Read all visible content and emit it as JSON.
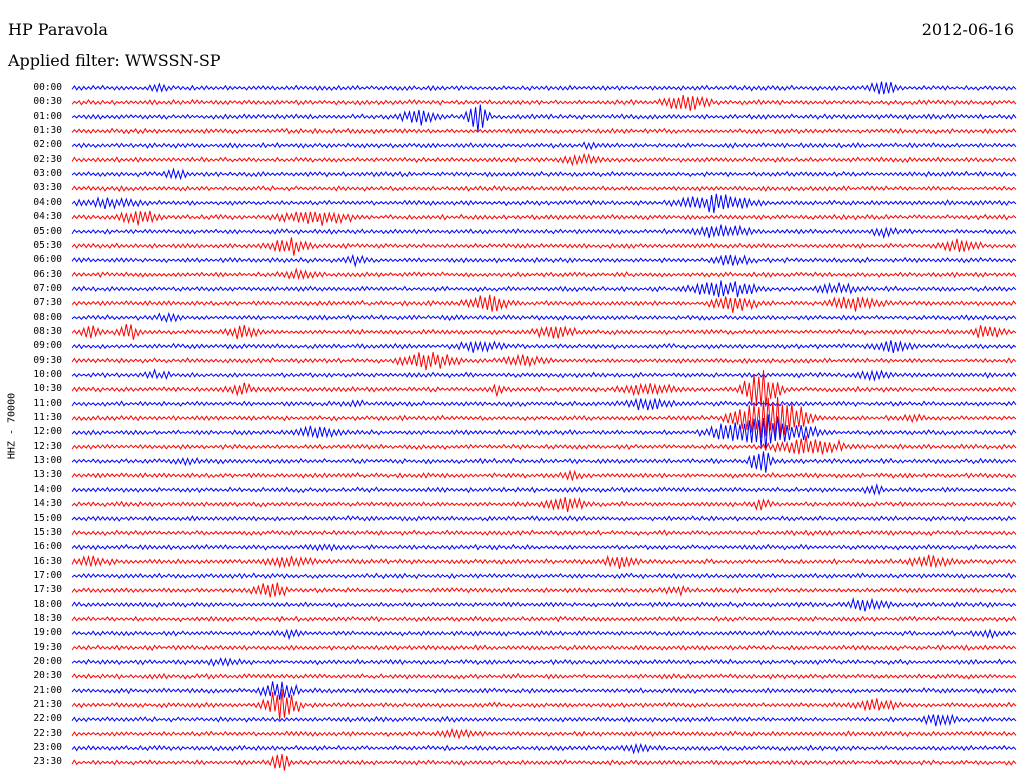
{
  "header": {
    "station": "HP Paravola",
    "date": "2012-06-16",
    "filter_label": "Applied filter: WWSSN-SP"
  },
  "channel_label": "HHZ - 70000",
  "colors": {
    "even_trace": "#0000ff",
    "odd_trace": "#ff0000",
    "background": "#ffffff"
  },
  "chart_data": {
    "type": "line",
    "title": "HP Paravola",
    "subtitle": "Applied filter: WWSSN-SP",
    "ylabel": "HHZ - 70000",
    "rows": [
      "00:00",
      "00:30",
      "01:00",
      "01:30",
      "02:00",
      "02:30",
      "03:00",
      "03:30",
      "04:00",
      "04:30",
      "05:00",
      "05:30",
      "06:00",
      "06:30",
      "07:00",
      "07:30",
      "08:00",
      "08:30",
      "09:00",
      "09:30",
      "10:00",
      "10:30",
      "11:00",
      "11:30",
      "12:00",
      "12:30",
      "13:00",
      "13:30",
      "14:00",
      "14:30",
      "15:00",
      "15:30",
      "16:00",
      "16:30",
      "17:00",
      "17:30",
      "18:00",
      "18:30",
      "19:00",
      "19:30",
      "20:00",
      "20:30",
      "21:00",
      "21:30",
      "22:00",
      "22:30",
      "23:00",
      "23:30"
    ],
    "row_colors": [
      "blue",
      "red"
    ],
    "events": [
      {
        "row": 0,
        "pos": 0.09,
        "amp": 6,
        "len": 0.02
      },
      {
        "row": 0,
        "pos": 0.86,
        "amp": 14,
        "len": 0.02
      },
      {
        "row": 1,
        "pos": 0.65,
        "amp": 12,
        "len": 0.04
      },
      {
        "row": 2,
        "pos": 0.37,
        "amp": 10,
        "len": 0.04
      },
      {
        "row": 2,
        "pos": 0.43,
        "amp": 18,
        "len": 0.02
      },
      {
        "row": 4,
        "pos": 0.55,
        "amp": 6,
        "len": 0.02
      },
      {
        "row": 5,
        "pos": 0.54,
        "amp": 8,
        "len": 0.04
      },
      {
        "row": 6,
        "pos": 0.11,
        "amp": 7,
        "len": 0.03
      },
      {
        "row": 8,
        "pos": 0.04,
        "amp": 8,
        "len": 0.06
      },
      {
        "row": 8,
        "pos": 0.68,
        "amp": 12,
        "len": 0.07
      },
      {
        "row": 9,
        "pos": 0.07,
        "amp": 10,
        "len": 0.04
      },
      {
        "row": 9,
        "pos": 0.26,
        "amp": 10,
        "len": 0.07
      },
      {
        "row": 10,
        "pos": 0.69,
        "amp": 10,
        "len": 0.05
      },
      {
        "row": 10,
        "pos": 0.86,
        "amp": 7,
        "len": 0.03
      },
      {
        "row": 11,
        "pos": 0.23,
        "amp": 12,
        "len": 0.04
      },
      {
        "row": 11,
        "pos": 0.94,
        "amp": 10,
        "len": 0.04
      },
      {
        "row": 12,
        "pos": 0.3,
        "amp": 6,
        "len": 0.03
      },
      {
        "row": 12,
        "pos": 0.7,
        "amp": 8,
        "len": 0.04
      },
      {
        "row": 13,
        "pos": 0.24,
        "amp": 8,
        "len": 0.04
      },
      {
        "row": 14,
        "pos": 0.69,
        "amp": 12,
        "len": 0.06
      },
      {
        "row": 14,
        "pos": 0.81,
        "amp": 8,
        "len": 0.04
      },
      {
        "row": 15,
        "pos": 0.44,
        "amp": 12,
        "len": 0.04
      },
      {
        "row": 15,
        "pos": 0.7,
        "amp": 12,
        "len": 0.04
      },
      {
        "row": 15,
        "pos": 0.83,
        "amp": 10,
        "len": 0.05
      },
      {
        "row": 16,
        "pos": 0.1,
        "amp": 6,
        "len": 0.03
      },
      {
        "row": 17,
        "pos": 0.02,
        "amp": 10,
        "len": 0.02
      },
      {
        "row": 17,
        "pos": 0.06,
        "amp": 12,
        "len": 0.02
      },
      {
        "row": 17,
        "pos": 0.18,
        "amp": 10,
        "len": 0.03
      },
      {
        "row": 17,
        "pos": 0.51,
        "amp": 10,
        "len": 0.04
      },
      {
        "row": 17,
        "pos": 0.97,
        "amp": 10,
        "len": 0.03
      },
      {
        "row": 18,
        "pos": 0.43,
        "amp": 8,
        "len": 0.05
      },
      {
        "row": 18,
        "pos": 0.87,
        "amp": 10,
        "len": 0.04
      },
      {
        "row": 19,
        "pos": 0.38,
        "amp": 14,
        "len": 0.05
      },
      {
        "row": 19,
        "pos": 0.48,
        "amp": 8,
        "len": 0.04
      },
      {
        "row": 20,
        "pos": 0.09,
        "amp": 6,
        "len": 0.03
      },
      {
        "row": 20,
        "pos": 0.85,
        "amp": 8,
        "len": 0.03
      },
      {
        "row": 21,
        "pos": 0.18,
        "amp": 8,
        "len": 0.03
      },
      {
        "row": 21,
        "pos": 0.45,
        "amp": 8,
        "len": 0.02
      },
      {
        "row": 21,
        "pos": 0.61,
        "amp": 8,
        "len": 0.06
      },
      {
        "row": 21,
        "pos": 0.73,
        "amp": 26,
        "len": 0.03
      },
      {
        "row": 22,
        "pos": 0.3,
        "amp": 6,
        "len": 0.02
      },
      {
        "row": 22,
        "pos": 0.61,
        "amp": 8,
        "len": 0.05
      },
      {
        "row": 23,
        "pos": 0.74,
        "amp": 30,
        "len": 0.06
      },
      {
        "row": 23,
        "pos": 0.89,
        "amp": 6,
        "len": 0.03
      },
      {
        "row": 24,
        "pos": 0.26,
        "amp": 10,
        "len": 0.04
      },
      {
        "row": 24,
        "pos": 0.73,
        "amp": 22,
        "len": 0.08
      },
      {
        "row": 25,
        "pos": 0.78,
        "amp": 14,
        "len": 0.06
      },
      {
        "row": 26,
        "pos": 0.12,
        "amp": 6,
        "len": 0.03
      },
      {
        "row": 26,
        "pos": 0.73,
        "amp": 20,
        "len": 0.02
      },
      {
        "row": 27,
        "pos": 0.53,
        "amp": 6,
        "len": 0.03
      },
      {
        "row": 28,
        "pos": 0.85,
        "amp": 8,
        "len": 0.02
      },
      {
        "row": 29,
        "pos": 0.52,
        "amp": 10,
        "len": 0.04
      },
      {
        "row": 29,
        "pos": 0.73,
        "amp": 8,
        "len": 0.02
      },
      {
        "row": 32,
        "pos": 0.27,
        "amp": 6,
        "len": 0.04
      },
      {
        "row": 33,
        "pos": 0.02,
        "amp": 8,
        "len": 0.04
      },
      {
        "row": 33,
        "pos": 0.23,
        "amp": 8,
        "len": 0.05
      },
      {
        "row": 33,
        "pos": 0.58,
        "amp": 8,
        "len": 0.04
      },
      {
        "row": 33,
        "pos": 0.91,
        "amp": 8,
        "len": 0.05
      },
      {
        "row": 35,
        "pos": 0.21,
        "amp": 12,
        "len": 0.03
      },
      {
        "row": 35,
        "pos": 0.64,
        "amp": 6,
        "len": 0.04
      },
      {
        "row": 36,
        "pos": 0.84,
        "amp": 10,
        "len": 0.04
      },
      {
        "row": 38,
        "pos": 0.23,
        "amp": 6,
        "len": 0.03
      },
      {
        "row": 38,
        "pos": 0.97,
        "amp": 6,
        "len": 0.03
      },
      {
        "row": 40,
        "pos": 0.16,
        "amp": 6,
        "len": 0.04
      },
      {
        "row": 42,
        "pos": 0.22,
        "amp": 16,
        "len": 0.03
      },
      {
        "row": 43,
        "pos": 0.22,
        "amp": 22,
        "len": 0.03
      },
      {
        "row": 43,
        "pos": 0.85,
        "amp": 8,
        "len": 0.05
      },
      {
        "row": 44,
        "pos": 0.4,
        "amp": 4,
        "len": 0.02
      },
      {
        "row": 44,
        "pos": 0.92,
        "amp": 10,
        "len": 0.03
      },
      {
        "row": 45,
        "pos": 0.41,
        "amp": 6,
        "len": 0.05
      },
      {
        "row": 46,
        "pos": 0.6,
        "amp": 6,
        "len": 0.04
      },
      {
        "row": 47,
        "pos": 0.22,
        "amp": 12,
        "len": 0.02
      }
    ]
  }
}
